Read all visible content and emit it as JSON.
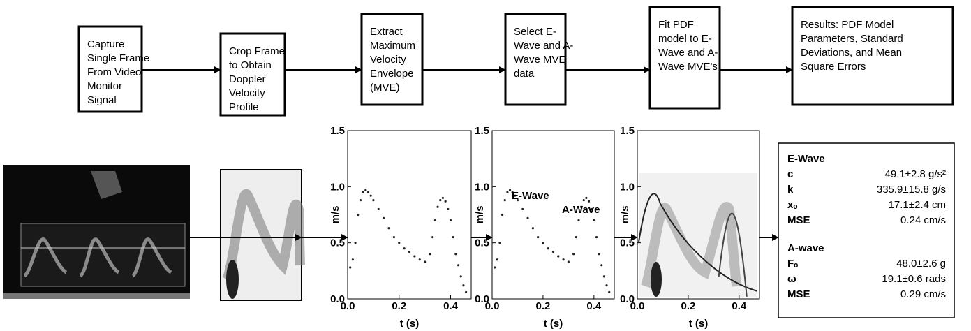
{
  "steps": [
    {
      "lines": [
        "Capture",
        "Single Frame",
        "From Video",
        "Monitor",
        "Signal"
      ]
    },
    {
      "lines": [
        "Crop Frame",
        "to Obtain",
        "Doppler",
        "Velocity",
        "Profile"
      ]
    },
    {
      "lines": [
        "Extract",
        "Maximum",
        "Velocity",
        "Envelope",
        "(MVE)"
      ]
    },
    {
      "lines": [
        "Select E-",
        "Wave and A-",
        "Wave MVE",
        "data"
      ]
    },
    {
      "lines": [
        "Fit PDF",
        "model to E-",
        "Wave and A-",
        "Wave MVE's"
      ]
    },
    {
      "lines": [
        "Results: PDF Model",
        "Parameters, Standard",
        "Deviations, and Mean",
        "Square Errors"
      ]
    }
  ],
  "plots": [
    {
      "x_label": "t (s)",
      "y_label": "m/s",
      "xlim": [
        0,
        0.48
      ],
      "ylim": [
        0,
        1.5
      ],
      "xticks": [
        {
          "value": 0,
          "label": "0.0"
        },
        0.2,
        0.4
      ],
      "yticks": [
        {
          "value": 0,
          "label": "0.0"
        },
        0.5,
        {
          "value": 1,
          "label": "1.0"
        },
        1.5
      ],
      "x": [
        0.01,
        0.02,
        0.03,
        0.04,
        0.05,
        0.06,
        0.07,
        0.08,
        0.09,
        0.1,
        0.12,
        0.14,
        0.16,
        0.18,
        0.2,
        0.22,
        0.24,
        0.26,
        0.28,
        0.3,
        0.32,
        0.33,
        0.34,
        0.35,
        0.36,
        0.37,
        0.38,
        0.39,
        0.4,
        0.41,
        0.42,
        0.43,
        0.44,
        0.45,
        0.46
      ],
      "y": [
        0.28,
        0.35,
        0.5,
        0.75,
        0.88,
        0.95,
        0.97,
        0.95,
        0.92,
        0.88,
        0.8,
        0.72,
        0.63,
        0.55,
        0.5,
        0.45,
        0.42,
        0.38,
        0.35,
        0.33,
        0.4,
        0.55,
        0.7,
        0.82,
        0.88,
        0.9,
        0.87,
        0.8,
        0.7,
        0.55,
        0.4,
        0.3,
        0.2,
        0.12,
        0.06
      ]
    },
    {
      "x_label": "t (s)",
      "y_label": "m/s",
      "xlim": [
        0,
        0.48
      ],
      "ylim": [
        0,
        1.5
      ],
      "xticks": [
        {
          "value": 0,
          "label": "0.0"
        },
        0.2,
        0.4
      ],
      "yticks": [
        {
          "value": 0,
          "label": "0.0"
        },
        0.5,
        {
          "value": 1,
          "label": "1.0"
        },
        1.5
      ],
      "annotations": [
        "E-Wave",
        "A-Wave"
      ],
      "x": [
        0.01,
        0.02,
        0.03,
        0.04,
        0.05,
        0.06,
        0.07,
        0.08,
        0.09,
        0.1,
        0.12,
        0.14,
        0.16,
        0.18,
        0.2,
        0.22,
        0.24,
        0.26,
        0.28,
        0.3,
        0.32,
        0.33,
        0.34,
        0.35,
        0.36,
        0.37,
        0.38,
        0.39,
        0.4,
        0.41,
        0.42,
        0.43,
        0.44,
        0.45,
        0.46
      ],
      "y": [
        0.28,
        0.35,
        0.5,
        0.75,
        0.88,
        0.95,
        0.97,
        0.95,
        0.92,
        0.88,
        0.8,
        0.72,
        0.63,
        0.55,
        0.5,
        0.45,
        0.42,
        0.38,
        0.35,
        0.33,
        0.4,
        0.55,
        0.7,
        0.82,
        0.88,
        0.9,
        0.87,
        0.8,
        0.7,
        0.55,
        0.4,
        0.3,
        0.2,
        0.12,
        0.06
      ]
    },
    {
      "x_label": "t (s)",
      "y_label": "m/s",
      "xlim": [
        0,
        0.48
      ],
      "ylim": [
        0,
        1.5
      ],
      "xticks": [
        {
          "value": 0,
          "label": "0.0"
        },
        0.2,
        0.4
      ],
      "yticks": [
        {
          "value": 0,
          "label": "0.0"
        },
        0.5,
        {
          "value": 1,
          "label": "1.0"
        },
        1.5
      ]
    }
  ],
  "results": [
    {
      "heading": "E-Wave",
      "rows": [
        [
          "c",
          "49.1±2.8 g/s²"
        ],
        [
          "k",
          "335.9±15.8 g/s"
        ],
        [
          "xₒ",
          "17.1±2.4 cm"
        ],
        [
          "MSE",
          "0.24 cm/s"
        ]
      ]
    },
    {
      "heading": "A-wave",
      "rows": [
        [
          "Fₒ",
          "48.0±2.6 g"
        ],
        [
          "ω",
          "19.1±0.6 rads"
        ],
        [
          "MSE",
          "0.29 cm/s"
        ]
      ]
    }
  ]
}
